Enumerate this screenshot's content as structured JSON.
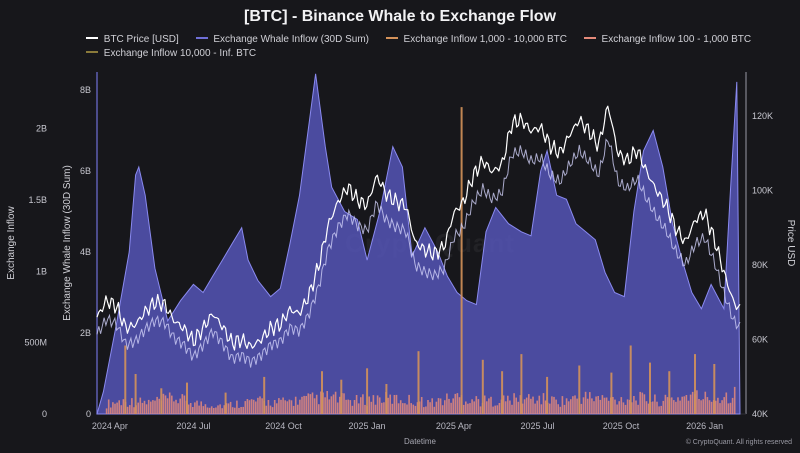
{
  "chart_data": {
    "type": "area",
    "title": "[BTC] - Binance Whale to Exchange Flow",
    "xlabel": "Datetime",
    "ylabel_outer_left": "Exchange Inflow",
    "ylabel_left": "Exchange Whale Inflow (30D Sum)",
    "ylabel_right": "Price USD",
    "watermark": "CryptoQuant",
    "footer": "© CryptoQuant. All rights reserved",
    "x_ticks": [
      "2024 Apr",
      "2024 Jul",
      "2024 Oct",
      "2025 Jan",
      "2025 Apr",
      "2025 Jul",
      "2025 Oct",
      "2026 Jan"
    ],
    "outer_left_axis": {
      "range": [
        0,
        2270000000
      ],
      "ticks": [
        0,
        500000000,
        1000000000,
        1500000000,
        2000000000
      ],
      "tick_labels": [
        "0",
        "500M",
        "1B",
        "1.5B",
        "2B"
      ]
    },
    "left_axis": {
      "range": [
        0,
        8000000000
      ],
      "ticks": [
        0,
        2000000000,
        4000000000,
        6000000000,
        8000000000
      ],
      "tick_labels": [
        "0",
        "2B",
        "4B",
        "6B",
        "8B"
      ]
    },
    "right_axis": {
      "range": [
        40000,
        127000
      ],
      "ticks": [
        40000,
        60000,
        80000,
        100000,
        120000
      ],
      "tick_labels": [
        "40K",
        "60K",
        "80K",
        "100K",
        "120K"
      ]
    },
    "legend": [
      {
        "name": "BTC Price [USD]",
        "color": "#ffffff"
      },
      {
        "name": "Exchange Whale Inflow (30D Sum)",
        "color": "#6f6fd6"
      },
      {
        "name": "Exchange Inflow 1,000 - 10,000 BTC",
        "color": "#d4925a"
      },
      {
        "name": "Exchange Inflow 100 - 1,000 BTC",
        "color": "#e58a7a"
      },
      {
        "name": "Exchange Inflow 10,000 - Inf. BTC",
        "color": "#8a7a3a"
      }
    ],
    "series": [
      {
        "name": "Exchange Whale Inflow (30D Sum)",
        "axis": "left",
        "color": "#6f6fd6",
        "x": [
          0,
          0.01,
          0.03,
          0.05,
          0.06,
          0.065,
          0.075,
          0.09,
          0.11,
          0.13,
          0.15,
          0.165,
          0.18,
          0.195,
          0.21,
          0.225,
          0.235,
          0.25,
          0.27,
          0.285,
          0.3,
          0.315,
          0.33,
          0.34,
          0.355,
          0.365,
          0.385,
          0.405,
          0.42,
          0.44,
          0.46,
          0.475,
          0.49,
          0.51,
          0.53,
          0.545,
          0.56,
          0.575,
          0.59,
          0.605,
          0.62,
          0.64,
          0.66,
          0.675,
          0.69,
          0.7,
          0.715,
          0.73,
          0.745,
          0.76,
          0.775,
          0.79,
          0.805,
          0.82,
          0.835,
          0.85,
          0.865,
          0.88,
          0.895,
          0.91,
          0.925,
          0.94,
          0.955,
          0.965,
          0.975,
          0.985,
          0.995,
          1.0
        ],
        "values": [
          0,
          0.55,
          2.2,
          4.0,
          5.9,
          6.1,
          5.4,
          3.6,
          2.3,
          2.8,
          3.2,
          3.0,
          3.4,
          3.8,
          4.2,
          4.6,
          3.8,
          3.3,
          2.9,
          3.1,
          4.2,
          5.4,
          7.2,
          8.4,
          6.6,
          5.6,
          5.0,
          4.8,
          3.8,
          5.0,
          6.6,
          6.1,
          3.9,
          4.6,
          4.0,
          3.4,
          3.0,
          2.8,
          2.7,
          4.5,
          5.1,
          4.7,
          4.5,
          4.4,
          6.0,
          6.5,
          5.4,
          5.3,
          4.7,
          4.5,
          4.3,
          3.5,
          3.0,
          2.9,
          5.0,
          6.5,
          7.0,
          6.1,
          4.7,
          3.8,
          3.0,
          2.6,
          3.2,
          2.9,
          2.6,
          5.5,
          8.2,
          0
        ]
      },
      {
        "name": "BTC Price [USD]",
        "axis": "right",
        "color": "#ffffff",
        "x": [
          0.0,
          0.015,
          0.03,
          0.045,
          0.06,
          0.075,
          0.09,
          0.105,
          0.12,
          0.135,
          0.15,
          0.165,
          0.18,
          0.195,
          0.21,
          0.225,
          0.24,
          0.255,
          0.27,
          0.285,
          0.3,
          0.315,
          0.33,
          0.345,
          0.36,
          0.375,
          0.39,
          0.405,
          0.42,
          0.435,
          0.45,
          0.465,
          0.48,
          0.495,
          0.51,
          0.525,
          0.54,
          0.555,
          0.57,
          0.585,
          0.6,
          0.615,
          0.63,
          0.645,
          0.66,
          0.675,
          0.69,
          0.705,
          0.72,
          0.735,
          0.75,
          0.765,
          0.78,
          0.795,
          0.81,
          0.825,
          0.84,
          0.855,
          0.87,
          0.885,
          0.9,
          0.915,
          0.93,
          0.945,
          0.96,
          0.975,
          0.99,
          1.0
        ],
        "values": [
          66000,
          70500,
          69000,
          63000,
          64000,
          67500,
          70000,
          69500,
          65000,
          63000,
          59500,
          63000,
          67000,
          63500,
          59000,
          60000,
          58000,
          60000,
          63000,
          64000,
          68000,
          67000,
          72000,
          80000,
          91000,
          97000,
          101000,
          97500,
          96000,
          104000,
          99000,
          97000,
          96000,
          86000,
          84000,
          83000,
          85000,
          94000,
          97000,
          104000,
          108000,
          105000,
          107000,
          118000,
          119000,
          116000,
          117000,
          112000,
          110000,
          115000,
          119000,
          116000,
          112000,
          123000,
          110000,
          108000,
          111000,
          105000,
          100000,
          96000,
          90000,
          86000,
          92000,
          94000,
          87000,
          78000,
          70000,
          68000
        ]
      },
      {
        "name": "Exchange Inflow 100 - 1,000 BTC",
        "axis": "outer_left",
        "color": "#e58a7a",
        "x": [
          0.0,
          0.04,
          0.08,
          0.12,
          0.16,
          0.2,
          0.24,
          0.28,
          0.32,
          0.36,
          0.4,
          0.44,
          0.48,
          0.52,
          0.56,
          0.6,
          0.64,
          0.68,
          0.72,
          0.76,
          0.8,
          0.84,
          0.88,
          0.92,
          0.96,
          1.0
        ],
        "values": [
          60000000,
          90000000,
          80000000,
          110000000,
          70000000,
          60000000,
          90000000,
          80000000,
          100000000,
          120000000,
          90000000,
          110000000,
          100000000,
          80000000,
          120000000,
          90000000,
          100000000,
          110000000,
          90000000,
          120000000,
          100000000,
          110000000,
          90000000,
          130000000,
          110000000,
          150000000
        ]
      },
      {
        "name": "Exchange Inflow 1,000 - 10,000 BTC",
        "axis": "outer_left",
        "color": "#d4925a",
        "x": [
          0.044,
          0.06,
          0.1,
          0.14,
          0.2,
          0.26,
          0.35,
          0.38,
          0.42,
          0.45,
          0.5,
          0.567,
          0.6,
          0.63,
          0.66,
          0.7,
          0.75,
          0.8,
          0.83,
          0.86,
          0.89,
          0.93,
          0.96
        ],
        "values": [
          480000000,
          280000000,
          180000000,
          220000000,
          150000000,
          260000000,
          300000000,
          240000000,
          320000000,
          210000000,
          440000000,
          2150000000,
          380000000,
          300000000,
          420000000,
          260000000,
          340000000,
          290000000,
          480000000,
          360000000,
          300000000,
          420000000,
          350000000
        ]
      }
    ]
  }
}
